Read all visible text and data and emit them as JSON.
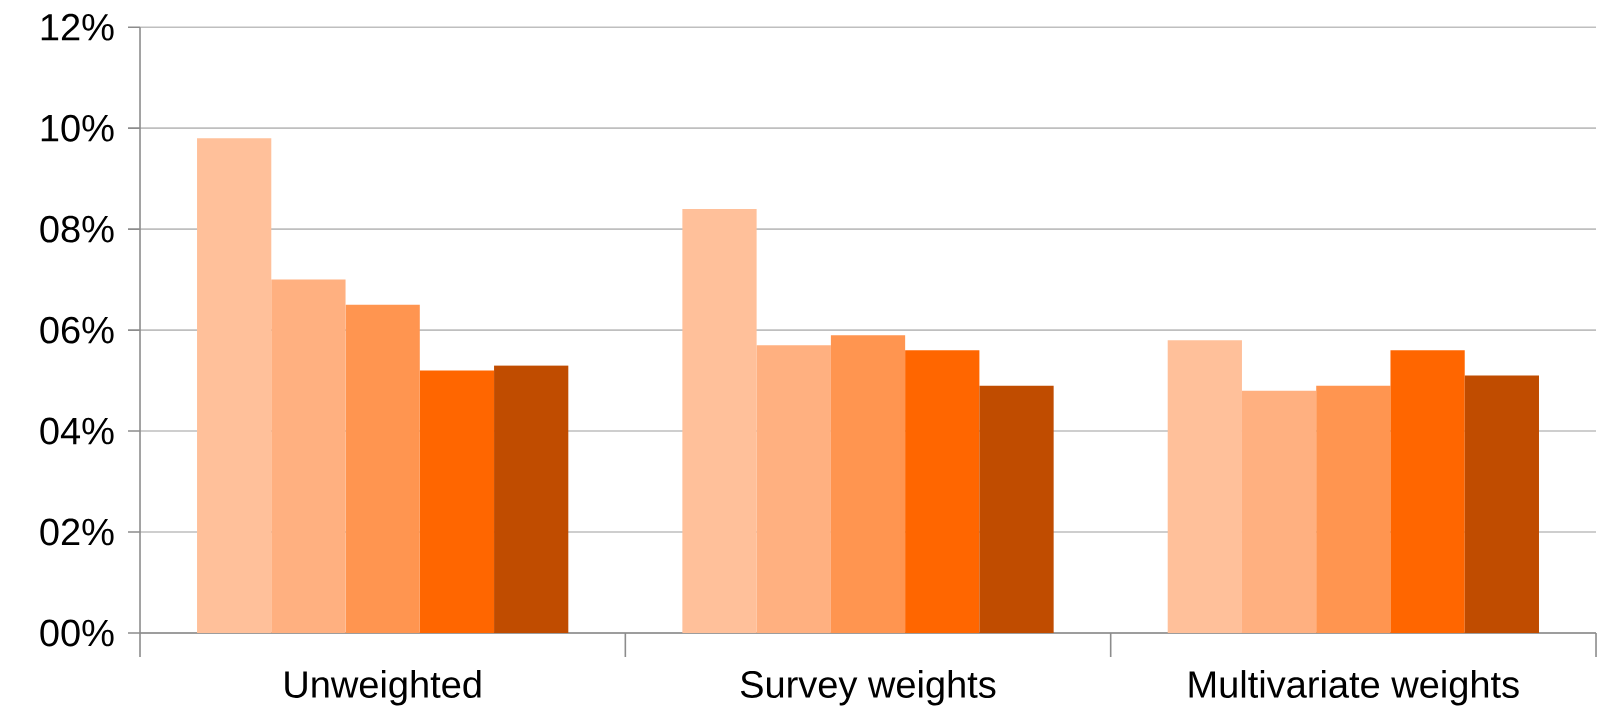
{
  "chart_data": {
    "type": "bar",
    "categories": [
      "Unweighted",
      "Survey weights",
      "Multivariate weights"
    ],
    "series": [
      {
        "color": "#ffc09a",
        "values": [
          9.8,
          8.4,
          5.8
        ]
      },
      {
        "color": "#ffb080",
        "values": [
          7.0,
          5.7,
          4.8
        ]
      },
      {
        "color": "#ff9550",
        "values": [
          6.5,
          5.9,
          4.9
        ]
      },
      {
        "color": "#ff6600",
        "values": [
          5.2,
          5.6,
          5.6
        ]
      },
      {
        "color": "#c04c00",
        "values": [
          5.3,
          4.9,
          5.1
        ]
      }
    ],
    "ylim": [
      0,
      12
    ],
    "yticks": [
      {
        "value": 0,
        "label": "00%"
      },
      {
        "value": 2,
        "label": "02%"
      },
      {
        "value": 4,
        "label": "04%"
      },
      {
        "value": 6,
        "label": "06%"
      },
      {
        "value": 8,
        "label": "08%"
      },
      {
        "value": 10,
        "label": "10%"
      },
      {
        "value": 12,
        "label": "12%"
      }
    ],
    "grid": "y"
  }
}
